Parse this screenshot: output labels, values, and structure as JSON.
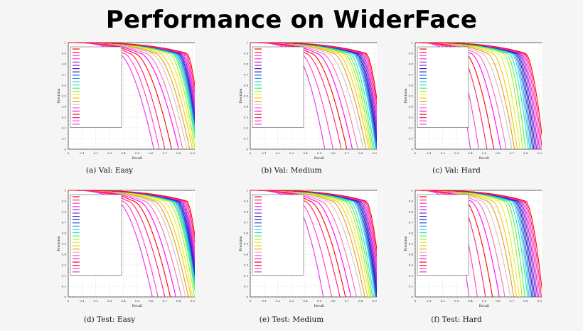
{
  "page": {
    "title": "Performance on WiderFace"
  },
  "colors": {
    "palette": [
      "#ff0000",
      "#ff1e6e",
      "#ff3cc8",
      "#e632e6",
      "#b41ed2",
      "#7828dc",
      "#3c1ec8",
      "#1e1eaa",
      "#2850e6",
      "#2896f0",
      "#28d2e6",
      "#28e6aa",
      "#50f050",
      "#a0f028",
      "#e6f01e",
      "#f0c814",
      "#f09614",
      "#c8c8c8",
      "#ff69b4",
      "#ff00ff"
    ]
  },
  "chart_data": [
    {
      "type": "line",
      "caption": "(a)  Val: Easy",
      "xlabel": "Recall",
      "ylabel": "Precision",
      "xlim": [
        0,
        1
      ],
      "ylim": [
        0,
        1
      ],
      "xticks": [
        "0",
        "0.1",
        "0.2",
        "0.3",
        "0.4",
        "0.5",
        "0.6",
        "0.7",
        "0.8",
        "0.9",
        "1"
      ],
      "yticks": [
        "0",
        "0.1",
        "0.2",
        "0.3",
        "0.4",
        "0.5",
        "0.6",
        "0.7",
        "0.8",
        "0.9",
        "1"
      ],
      "grid": true,
      "legend_position": "left",
      "legend_entries": [
        "",
        "",
        "",
        "",
        "",
        "",
        "",
        "",
        "",
        "",
        "",
        "",
        "",
        "",
        "",
        "",
        "",
        "",
        "",
        "",
        "",
        "",
        "",
        ""
      ],
      "max_recall": [
        0.97,
        0.965,
        0.96,
        0.958,
        0.955,
        0.952,
        0.95,
        0.948,
        0.945,
        0.943,
        0.94,
        0.936,
        0.93,
        0.92,
        0.91,
        0.9,
        0.88,
        0.86,
        0.83,
        0.8,
        0.75,
        0.7,
        0.66,
        0.62
      ],
      "knee": [
        0.86,
        0.85,
        0.84,
        0.83,
        0.82,
        0.81,
        0.8,
        0.8,
        0.79,
        0.78,
        0.77,
        0.76,
        0.75,
        0.73,
        0.7,
        0.66,
        0.63,
        0.6,
        0.56,
        0.52,
        0.48,
        0.44,
        0.4,
        0.36
      ]
    },
    {
      "type": "line",
      "caption": "(b)  Val: Medium",
      "xlabel": "Recall",
      "ylabel": "Precision",
      "xlim": [
        0,
        1
      ],
      "ylim": [
        0,
        1
      ],
      "xticks": [
        "0",
        "0.1",
        "0.2",
        "0.3",
        "0.4",
        "0.5",
        "0.6",
        "0.7",
        "0.8",
        "0.9",
        "1"
      ],
      "yticks": [
        "0",
        "0.1",
        "0.2",
        "0.3",
        "0.4",
        "0.5",
        "0.6",
        "0.7",
        "0.8",
        "0.9",
        "1"
      ],
      "grid": true,
      "legend_position": "left",
      "legend_entries": [
        "",
        "",
        "",
        "",
        "",
        "",
        "",
        "",
        "",
        "",
        "",
        "",
        "",
        "",
        "",
        "",
        "",
        "",
        "",
        "",
        "",
        "",
        "",
        ""
      ],
      "max_recall": [
        0.96,
        0.955,
        0.95,
        0.945,
        0.94,
        0.935,
        0.93,
        0.925,
        0.92,
        0.915,
        0.91,
        0.9,
        0.89,
        0.88,
        0.87,
        0.86,
        0.84,
        0.82,
        0.78,
        0.74,
        0.7,
        0.66,
        0.6,
        0.54
      ],
      "knee": [
        0.84,
        0.83,
        0.82,
        0.81,
        0.8,
        0.79,
        0.78,
        0.77,
        0.76,
        0.75,
        0.74,
        0.72,
        0.7,
        0.68,
        0.66,
        0.63,
        0.6,
        0.56,
        0.52,
        0.48,
        0.44,
        0.4,
        0.36,
        0.32
      ]
    },
    {
      "type": "line",
      "caption": "(c)  Val: Hard",
      "xlabel": "Recall",
      "ylabel": "Precision",
      "xlim": [
        0,
        1
      ],
      "ylim": [
        0,
        1
      ],
      "xticks": [
        "0",
        "0.1",
        "0.2",
        "0.3",
        "0.4",
        "0.5",
        "0.6",
        "0.7",
        "0.8",
        "0.9",
        "1"
      ],
      "yticks": [
        "0",
        "0.1",
        "0.2",
        "0.3",
        "0.4",
        "0.5",
        "0.6",
        "0.7",
        "0.8",
        "0.9",
        "1"
      ],
      "grid": true,
      "legend_position": "left",
      "legend_entries": [
        "",
        "",
        "",
        "",
        "",
        "",
        "",
        "",
        "",
        "",
        "",
        "",
        "",
        "",
        "",
        "",
        "",
        "",
        "",
        "",
        "",
        "",
        "",
        ""
      ],
      "max_recall": [
        0.93,
        0.92,
        0.91,
        0.9,
        0.89,
        0.88,
        0.87,
        0.86,
        0.85,
        0.84,
        0.83,
        0.82,
        0.8,
        0.78,
        0.76,
        0.74,
        0.72,
        0.7,
        0.66,
        0.62,
        0.57,
        0.52,
        0.46,
        0.4
      ],
      "knee": [
        0.8,
        0.79,
        0.78,
        0.77,
        0.76,
        0.75,
        0.74,
        0.73,
        0.72,
        0.71,
        0.7,
        0.68,
        0.66,
        0.64,
        0.6,
        0.56,
        0.52,
        0.48,
        0.44,
        0.4,
        0.36,
        0.32,
        0.28,
        0.24
      ]
    },
    {
      "type": "line",
      "caption": "(d)  Test: Easy",
      "xlabel": "Recall",
      "ylabel": "Precision",
      "xlim": [
        0,
        1
      ],
      "ylim": [
        0,
        1
      ],
      "xticks": [
        "0",
        "0.1",
        "0.2",
        "0.3",
        "0.4",
        "0.5",
        "0.6",
        "0.7",
        "0.8",
        "0.9",
        "1"
      ],
      "yticks": [
        "0",
        "0.1",
        "0.2",
        "0.3",
        "0.4",
        "0.5",
        "0.6",
        "0.7",
        "0.8",
        "0.9",
        "1"
      ],
      "grid": true,
      "legend_position": "left",
      "legend_entries": [
        "",
        "",
        "",
        "",
        "",
        "",
        "",
        "",
        "",
        "",
        "",
        "",
        "",
        "",
        "",
        "",
        "",
        "",
        "",
        "",
        "",
        "",
        "",
        ""
      ],
      "max_recall": [
        0.965,
        0.96,
        0.955,
        0.952,
        0.95,
        0.948,
        0.945,
        0.942,
        0.94,
        0.937,
        0.934,
        0.93,
        0.925,
        0.915,
        0.9,
        0.89,
        0.87,
        0.85,
        0.82,
        0.78,
        0.74,
        0.7,
        0.65,
        0.61
      ],
      "knee": [
        0.86,
        0.85,
        0.84,
        0.83,
        0.82,
        0.81,
        0.8,
        0.79,
        0.78,
        0.77,
        0.76,
        0.75,
        0.74,
        0.72,
        0.69,
        0.65,
        0.62,
        0.59,
        0.55,
        0.51,
        0.47,
        0.43,
        0.39,
        0.35
      ]
    },
    {
      "type": "line",
      "caption": "(e)  Test: Medium",
      "xlabel": "Recall",
      "ylabel": "Precision",
      "xlim": [
        0,
        1
      ],
      "ylim": [
        0,
        1
      ],
      "xticks": [
        "0",
        "0.1",
        "0.2",
        "0.3",
        "0.4",
        "0.5",
        "0.6",
        "0.7",
        "0.8",
        "0.9",
        "1"
      ],
      "yticks": [
        "0",
        "0.1",
        "0.2",
        "0.3",
        "0.4",
        "0.5",
        "0.6",
        "0.7",
        "0.8",
        "0.9",
        "1"
      ],
      "grid": true,
      "legend_position": "left",
      "legend_entries": [
        "",
        "",
        "",
        "",
        "",
        "",
        "",
        "",
        "",
        "",
        "",
        "",
        "",
        "",
        "",
        "",
        "",
        "",
        "",
        "",
        "",
        "",
        "",
        ""
      ],
      "max_recall": [
        0.955,
        0.95,
        0.945,
        0.94,
        0.935,
        0.93,
        0.925,
        0.92,
        0.915,
        0.91,
        0.905,
        0.895,
        0.885,
        0.875,
        0.865,
        0.85,
        0.83,
        0.81,
        0.77,
        0.73,
        0.69,
        0.65,
        0.59,
        0.53
      ],
      "knee": [
        0.84,
        0.83,
        0.82,
        0.81,
        0.8,
        0.79,
        0.78,
        0.77,
        0.76,
        0.75,
        0.74,
        0.72,
        0.7,
        0.68,
        0.65,
        0.62,
        0.59,
        0.55,
        0.51,
        0.47,
        0.43,
        0.39,
        0.35,
        0.31
      ]
    },
    {
      "type": "line",
      "caption": "(f)  Test: Hard",
      "xlabel": "Recall",
      "ylabel": "Precision",
      "xlim": [
        0,
        1
      ],
      "ylim": [
        0,
        1
      ],
      "xticks": [
        "0",
        "0.1",
        "0.2",
        "0.3",
        "0.4",
        "0.5",
        "0.6",
        "0.7",
        "0.8",
        "0.9",
        "1"
      ],
      "yticks": [
        "0",
        "0.1",
        "0.2",
        "0.3",
        "0.4",
        "0.5",
        "0.6",
        "0.7",
        "0.8",
        "0.9",
        "1"
      ],
      "grid": true,
      "legend_position": "left",
      "legend_entries": [
        "",
        "",
        "",
        "",
        "",
        "",
        "",
        "",
        "",
        "",
        "",
        "",
        "",
        "",
        "",
        "",
        "",
        "",
        "",
        "",
        "",
        "",
        "",
        ""
      ],
      "max_recall": [
        0.925,
        0.915,
        0.905,
        0.895,
        0.885,
        0.875,
        0.865,
        0.855,
        0.845,
        0.835,
        0.825,
        0.815,
        0.795,
        0.775,
        0.755,
        0.735,
        0.715,
        0.69,
        0.65,
        0.61,
        0.56,
        0.51,
        0.45,
        0.39
      ],
      "knee": [
        0.8,
        0.79,
        0.78,
        0.77,
        0.76,
        0.75,
        0.74,
        0.73,
        0.72,
        0.71,
        0.7,
        0.68,
        0.66,
        0.64,
        0.6,
        0.56,
        0.52,
        0.48,
        0.44,
        0.4,
        0.36,
        0.32,
        0.28,
        0.24
      ]
    }
  ]
}
